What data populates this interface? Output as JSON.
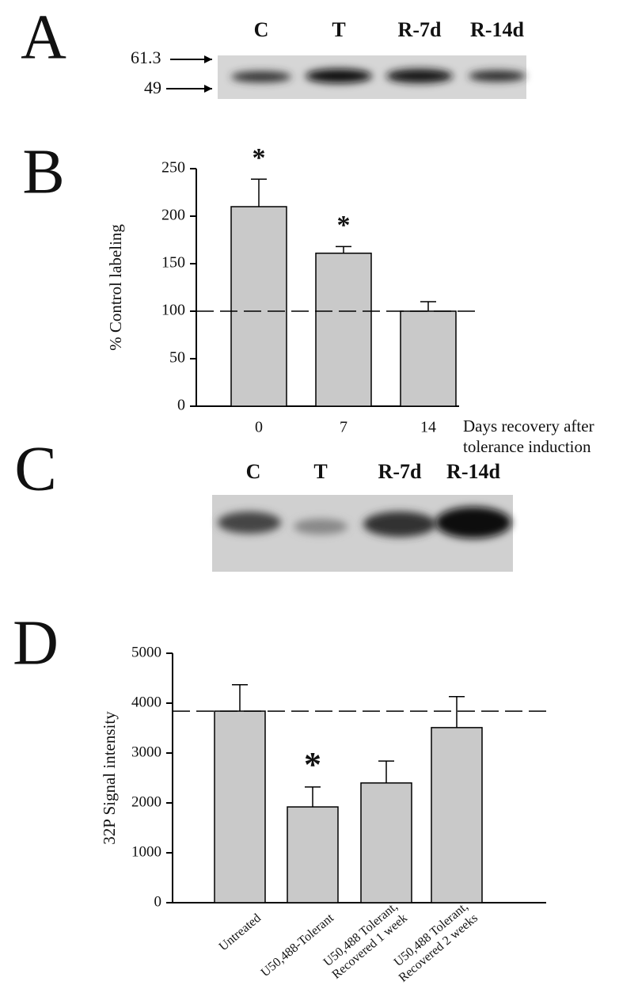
{
  "blots": [
    {
      "panel": "A",
      "lanes": [
        "C",
        "T",
        "R-7d",
        "R-14d"
      ],
      "markers": [
        "61.3",
        "49"
      ]
    },
    {
      "panel": "C",
      "lanes": [
        "C",
        "T",
        "R-7d",
        "R-14d"
      ]
    }
  ],
  "chart_data": [
    {
      "panel": "B",
      "type": "bar",
      "categories": [
        "0",
        "7",
        "14"
      ],
      "values": [
        210,
        161,
        100
      ],
      "errors": [
        29,
        7,
        10
      ],
      "significance_labels": [
        "*",
        "*",
        null
      ],
      "ylim": [
        0,
        250
      ],
      "yticks": [
        0,
        50,
        100,
        150,
        200,
        250
      ],
      "reference_line": 100,
      "ylabel": "% Control labeling",
      "xlabel": [
        "Days recovery after",
        "tolerance induction"
      ],
      "color": "#c9c9c9"
    },
    {
      "panel": "D",
      "type": "bar",
      "categories": [
        [
          "Untreated"
        ],
        [
          "U50,488-Tolerant"
        ],
        [
          "U50,488 Tolerant,",
          "Recovered 1 week"
        ],
        [
          "U50,488 Tolerant,",
          "Recovered 2 weeks"
        ]
      ],
      "values": [
        3840,
        1920,
        2400,
        3510
      ],
      "errors": [
        530,
        400,
        440,
        620
      ],
      "significance_labels": [
        null,
        "*",
        null,
        null
      ],
      "ylim": [
        0,
        5000
      ],
      "yticks": [
        0,
        1000,
        2000,
        3000,
        4000,
        5000
      ],
      "reference_line": 3840,
      "ylabel": "32P Signal intensity",
      "color": "#c9c9c9"
    }
  ]
}
